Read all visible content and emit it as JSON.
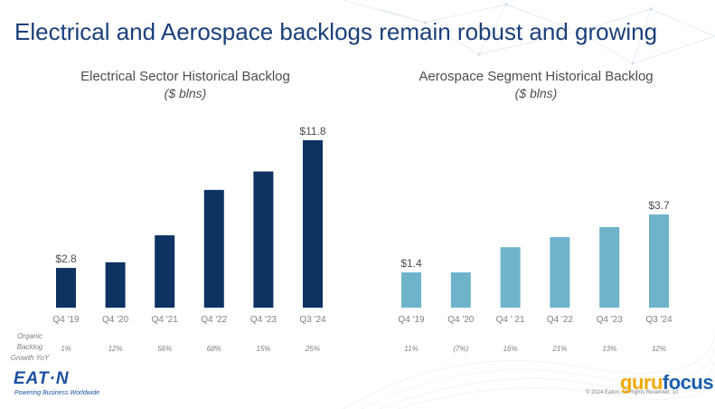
{
  "slide": {
    "title": "Electrical and Aerospace backlogs remain robust and growing",
    "growth_label": [
      "Organic",
      "Backlog",
      "Growth YoY"
    ],
    "logo_text": "EAT·N",
    "tagline": "Powering Business Worldwide",
    "copyright": "© 2024 Eaton. All Rights Reserved. 10",
    "watermark": {
      "part1": "guru",
      "part2": "focus"
    }
  },
  "colors": {
    "title": "#1a3f7a",
    "electrical_bar": "#0e3362",
    "aerospace_bar": "#6fb3cb",
    "growth_text": "#808080",
    "label_text": "#4d4d4d"
  },
  "chart_data": [
    {
      "type": "bar",
      "id": "electrical",
      "title": "Electrical Sector Historical Backlog",
      "subtitle": "($ blns)",
      "categories": [
        "Q4 '19",
        "Q4 '20",
        "Q4 '21",
        "Q4 '22",
        "Q4 '23",
        "Q3 '24"
      ],
      "values": [
        2.8,
        3.2,
        5.1,
        8.3,
        9.6,
        11.8
      ],
      "value_labels": [
        "$2.8",
        "",
        "",
        "",
        "",
        "$11.8"
      ],
      "growth": [
        "1%",
        "12%",
        "56%",
        "68%",
        "15%",
        "25%"
      ],
      "ylim": [
        0,
        11.8
      ]
    },
    {
      "type": "bar",
      "id": "aerospace",
      "title": "Aerospace Segment Historical Backlog",
      "subtitle": "($ blns)",
      "categories": [
        "Q4 '19",
        "Q4 '20",
        "Q4 ' 21",
        "Q4 '22",
        "Q4 '23",
        "Q3 '24"
      ],
      "values": [
        1.4,
        1.4,
        2.4,
        2.8,
        3.2,
        3.7
      ],
      "value_labels": [
        "$1.4",
        "",
        "",
        "",
        "",
        "$3.7"
      ],
      "growth": [
        "11%",
        "(7%)",
        "16%",
        "21%",
        "13%",
        "12%"
      ],
      "ylim": [
        0,
        3.7
      ]
    }
  ]
}
